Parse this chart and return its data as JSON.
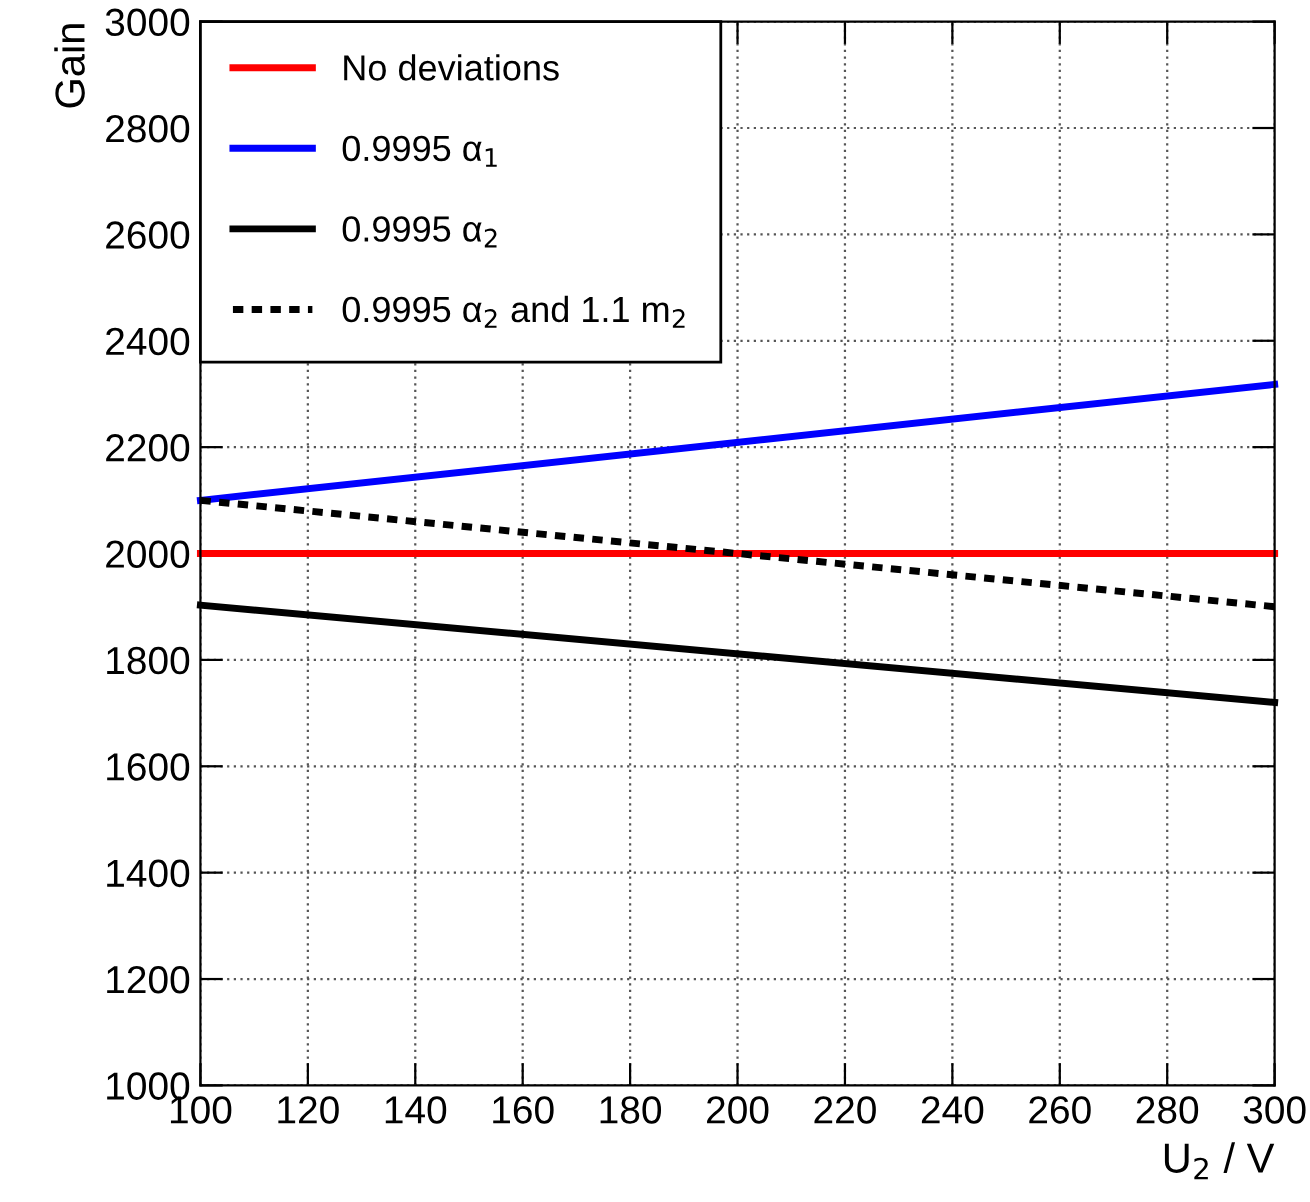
{
  "chart_data": {
    "type": "line",
    "xlabel": "U$_{2}$ / V",
    "ylabel": "Gain",
    "xlim": [
      100,
      300
    ],
    "xticks": [
      100,
      120,
      140,
      160,
      180,
      200,
      220,
      240,
      260,
      280,
      300
    ],
    "ylim": [
      1000,
      3000
    ],
    "yticks": [
      1000,
      1200,
      1400,
      1600,
      1800,
      2000,
      2200,
      2400,
      2600,
      2800,
      3000
    ],
    "grid": true,
    "legend": "top left",
    "x": [
      100,
      300
    ],
    "series": [
      {
        "name": "No deviations",
        "color": "#ff0000",
        "values": [
          2000,
          2000
        ],
        "line_style": "solid"
      },
      {
        "name": "0.9995 α$_{1}$",
        "color": "#0000ff",
        "values": [
          2100,
          2318
        ],
        "line_style": "solid"
      },
      {
        "name": "0.9995 α$_{2}$",
        "color": "#000000",
        "values": [
          1903,
          1720
        ],
        "line_style": "solid"
      },
      {
        "name": "0.9995 α$_{2}$ and 1.1 m$_{2}$",
        "color": "#000000",
        "values": [
          2100,
          1900
        ],
        "line_style": "dotted"
      }
    ]
  }
}
